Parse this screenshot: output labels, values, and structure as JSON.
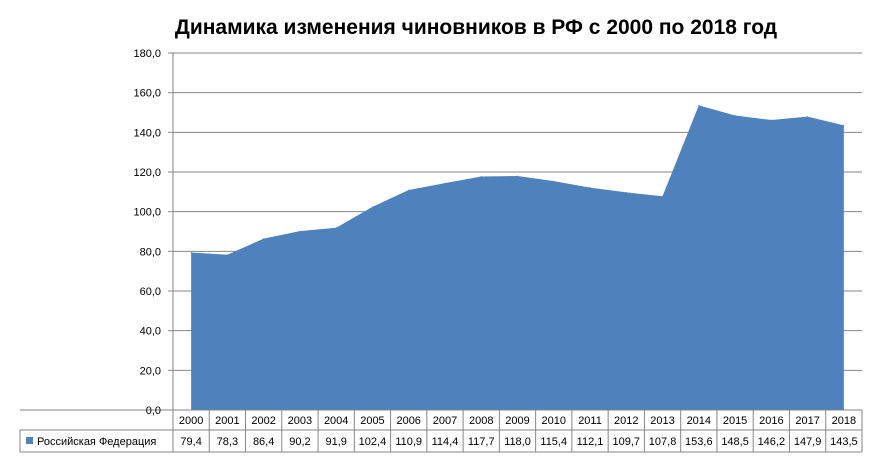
{
  "chart_data": {
    "type": "area",
    "title": "Динамика изменения чиновников в РФ с 2000 по 2018 год",
    "xlabel": "",
    "ylabel": "",
    "categories": [
      "2000",
      "2001",
      "2002",
      "2003",
      "2004",
      "2005",
      "2006",
      "2007",
      "2008",
      "2009",
      "2010",
      "2011",
      "2012",
      "2013",
      "2014",
      "2015",
      "2016",
      "2017",
      "2018"
    ],
    "series": [
      {
        "name": "Российская Федерация",
        "values": [
          79.4,
          78.3,
          86.4,
          90.2,
          91.9,
          102.4,
          110.9,
          114.4,
          117.7,
          118.0,
          115.4,
          112.1,
          109.7,
          107.8,
          153.6,
          148.5,
          146.2,
          147.9,
          143.5
        ],
        "labels": [
          "79,4",
          "78,3",
          "86,4",
          "90,2",
          "91,9",
          "102,4",
          "110,9",
          "114,4",
          "117,7",
          "118,0",
          "115,4",
          "112,1",
          "109,7",
          "107,8",
          "153,6",
          "148,5",
          "146,2",
          "147,9",
          "143,5"
        ]
      }
    ],
    "ylim": [
      0,
      180
    ],
    "y_ticks": [
      "0,0",
      "20,0",
      "40,0",
      "60,0",
      "80,0",
      "100,0",
      "120,0",
      "140,0",
      "160,0",
      "180,0"
    ],
    "grid": true,
    "legend": "data-table-left",
    "colors": {
      "area_fill": "#4f81bd",
      "gridline": "#868686",
      "axis": "#868686",
      "table_border": "#868686",
      "text": "#000000"
    }
  }
}
